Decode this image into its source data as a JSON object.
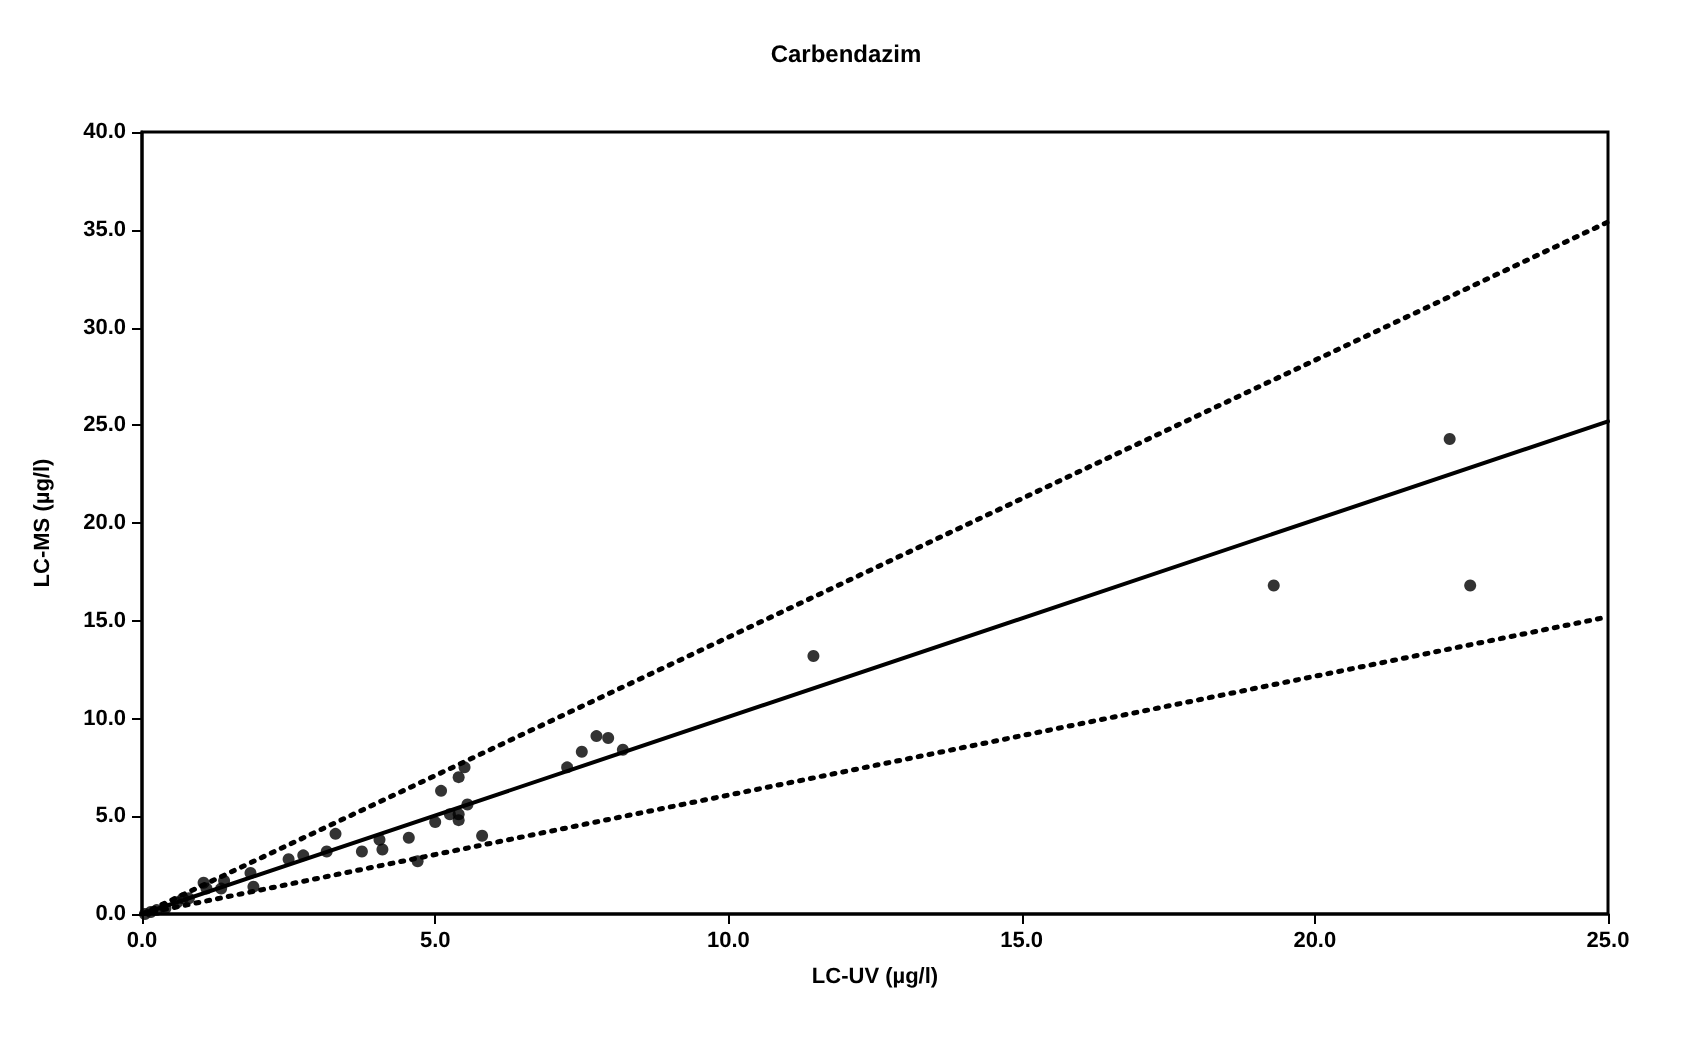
{
  "chart_data": {
    "type": "scatter",
    "title": "Carbendazim",
    "xlabel": "LC-UV (µg/l)",
    "ylabel": "LC-MS (µg/l)",
    "xlim": [
      0,
      25
    ],
    "ylim": [
      0,
      40
    ],
    "xticks": [
      {
        "value": 0,
        "label": "0.0"
      },
      {
        "value": 5,
        "label": "5.0"
      },
      {
        "value": 10,
        "label": "10.0"
      },
      {
        "value": 15,
        "label": "15.0"
      },
      {
        "value": 20,
        "label": "20.0"
      },
      {
        "value": 25,
        "label": "25.0"
      }
    ],
    "yticks": [
      {
        "value": 0,
        "label": "0.0"
      },
      {
        "value": 5,
        "label": "5.0"
      },
      {
        "value": 10,
        "label": "10.0"
      },
      {
        "value": 15,
        "label": "15.0"
      },
      {
        "value": 20,
        "label": "20.0"
      },
      {
        "value": 25,
        "label": "25.0"
      },
      {
        "value": 30,
        "label": "30.0"
      },
      {
        "value": 35,
        "label": "35.0"
      },
      {
        "value": 40,
        "label": "40.0"
      }
    ],
    "grid": false,
    "series": [
      {
        "marker": "circle",
        "color": "#000000",
        "x": [
          0.05,
          0.15,
          0.25,
          0.4,
          0.6,
          0.7,
          0.8,
          1.1,
          1.05,
          1.35,
          1.4,
          1.85,
          1.9,
          2.5,
          2.75,
          3.15,
          3.3,
          3.75,
          4.1,
          4.05,
          4.55,
          4.7,
          5.0,
          5.1,
          5.25,
          5.4,
          5.4,
          5.4,
          5.5,
          5.55,
          5.8,
          7.25,
          7.5,
          7.75,
          7.95,
          8.2,
          11.45,
          19.3,
          22.3,
          22.65
        ],
        "values": [
          0,
          0.1,
          0.2,
          0.3,
          0.6,
          0.8,
          0.8,
          1.3,
          1.6,
          1.3,
          1.7,
          2.1,
          1.4,
          2.8,
          3.0,
          3.2,
          4.1,
          3.2,
          3.3,
          3.8,
          3.9,
          2.7,
          4.7,
          6.3,
          5.1,
          5.1,
          4.8,
          7.0,
          7.5,
          5.6,
          4.0,
          7.5,
          8.3,
          9.1,
          9.0,
          8.4,
          13.2,
          16.8,
          24.3,
          16.8
        ]
      },
      {
        "type": "line",
        "marker": "none",
        "line_style": "solid",
        "color": "#000000",
        "x": [
          0,
          25
        ],
        "values": [
          0,
          25.2
        ]
      },
      {
        "type": "line",
        "marker": "none",
        "line_style": "dotted",
        "color": "#000000",
        "x": [
          0,
          25
        ],
        "values": [
          0,
          35.4
        ]
      },
      {
        "type": "line",
        "marker": "none",
        "line_style": "dotted",
        "color": "#000000",
        "x": [
          0,
          25
        ],
        "values": [
          0,
          15.2
        ]
      }
    ]
  }
}
